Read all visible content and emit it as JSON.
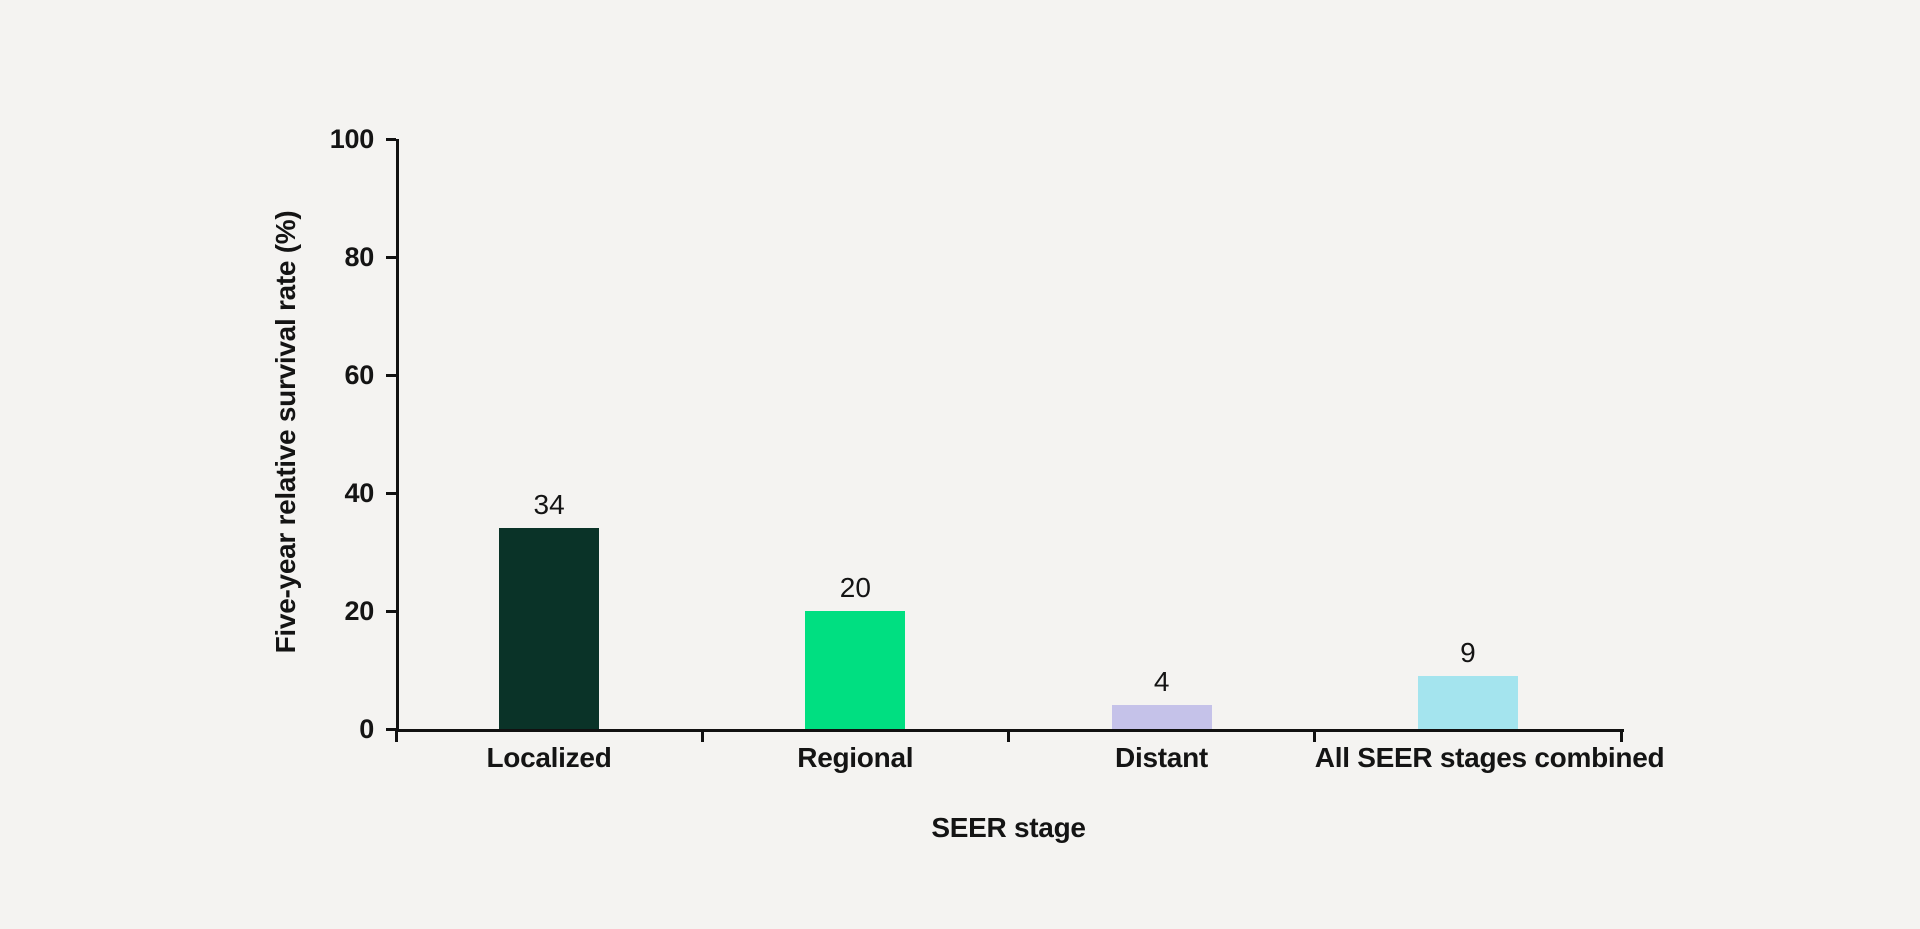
{
  "chart_data": {
    "type": "bar",
    "title": "",
    "xlabel": "SEER stage",
    "ylabel": "Five-year relative survival rate (%)",
    "categories": [
      "Localized",
      "Regional",
      "Distant",
      "All SEER stages combined"
    ],
    "values": [
      34,
      20,
      4,
      9
    ],
    "value_labels": [
      "34",
      "20",
      "4",
      "9"
    ],
    "bar_colors": [
      "#0a3328",
      "#00df81",
      "#c5c2e9",
      "#a4e4ee"
    ],
    "ylim": [
      0,
      100
    ],
    "yticks": [
      0,
      20,
      40,
      60,
      80,
      100
    ],
    "grid": false,
    "legend": false,
    "background_color": "#f4f3f1",
    "axis_color": "#111111",
    "text_color": "#141414"
  }
}
